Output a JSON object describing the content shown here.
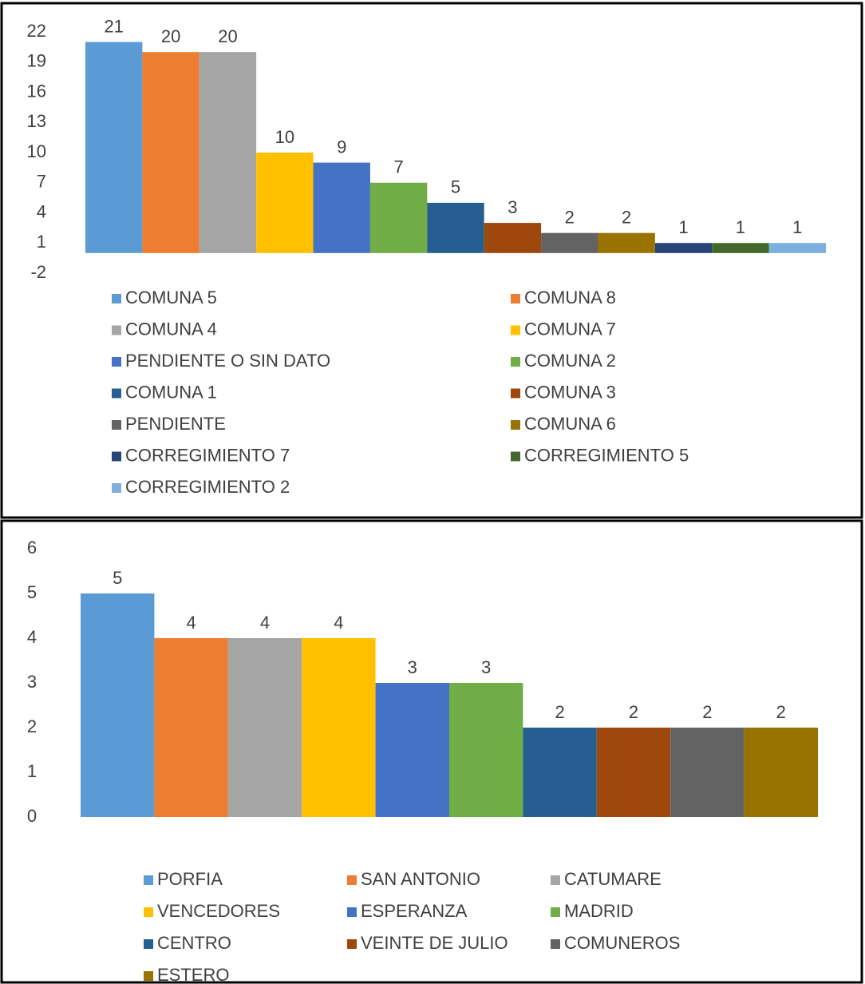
{
  "chart_data": [
    {
      "type": "bar",
      "categories": [
        "COMUNA 5",
        "COMUNA 8",
        "COMUNA 4",
        "COMUNA 7",
        "PENDIENTE O SIN DATO",
        "COMUNA 2",
        "COMUNA 1",
        "COMUNA 3",
        "PENDIENTE",
        "COMUNA 6",
        "CORREGIMIENTO 7",
        "CORREGIMIENTO 5",
        "CORREGIMIENTO 2"
      ],
      "values": [
        21,
        20,
        20,
        10,
        9,
        7,
        5,
        3,
        2,
        2,
        1,
        1,
        1
      ],
      "colors": [
        "#5b9bd5",
        "#ed7d31",
        "#a5a5a5",
        "#ffc000",
        "#4472c4",
        "#70ad47",
        "#255e91",
        "#9e480e",
        "#636363",
        "#997300",
        "#264478",
        "#43682b",
        "#7cafdd"
      ],
      "ylim": [
        -2,
        22
      ],
      "yticks": [
        -2,
        1,
        4,
        7,
        10,
        13,
        16,
        19,
        22
      ],
      "grid": false
    },
    {
      "type": "bar",
      "categories": [
        "PORFIA",
        "SAN ANTONIO",
        "CATUMARE",
        "VENCEDORES",
        "ESPERANZA",
        "MADRID",
        "CENTRO",
        "VEINTE DE JULIO",
        "COMUNEROS",
        "ESTERO"
      ],
      "values": [
        5,
        4,
        4,
        4,
        3,
        3,
        2,
        2,
        2,
        2
      ],
      "colors": [
        "#5b9bd5",
        "#ed7d31",
        "#a5a5a5",
        "#ffc000",
        "#4472c4",
        "#70ad47",
        "#255e91",
        "#9e480e",
        "#636363",
        "#997300"
      ],
      "ylim": [
        0,
        6
      ],
      "yticks": [
        0,
        1,
        2,
        3,
        4,
        5,
        6
      ],
      "grid": false
    }
  ]
}
